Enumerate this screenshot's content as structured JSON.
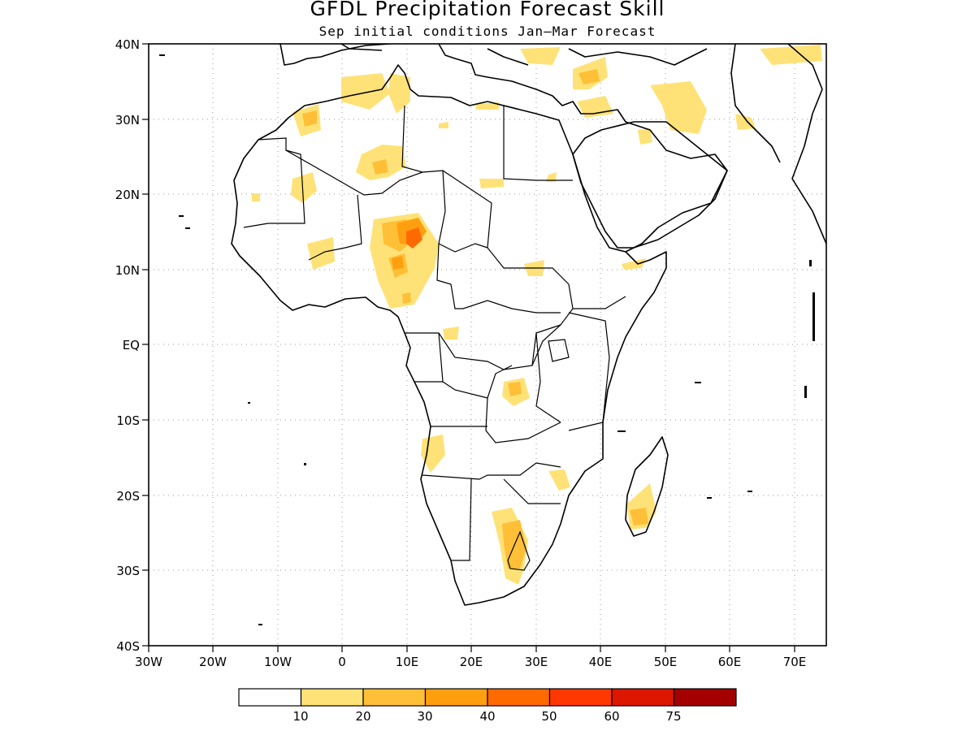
{
  "title": "GFDL Precipitation Forecast Skill",
  "subtitle": "Sep initial conditions  Jan–Mar Forecast",
  "map": {
    "region": "Africa",
    "lon_range": [
      -30,
      75
    ],
    "lat_range": [
      -40,
      40
    ],
    "lat_ticks": [
      "40N",
      "30N",
      "20N",
      "10N",
      "EQ",
      "10S",
      "20S",
      "30S",
      "40S"
    ],
    "lon_ticks": [
      "30W",
      "20W",
      "10W",
      "0",
      "10E",
      "20E",
      "30E",
      "40E",
      "50E",
      "60E",
      "70E"
    ],
    "grid": "dotted"
  },
  "colorbar": {
    "labels": [
      "10",
      "20",
      "30",
      "40",
      "50",
      "60",
      "75"
    ],
    "colors": [
      "#ffffff",
      "#ffe277",
      "#ffbf37",
      "#ff9f10",
      "#ff6a00",
      "#ff3700",
      "#dd1600",
      "#a50000"
    ]
  },
  "chart_data": {
    "type": "heatmap",
    "title": "GFDL Precipitation Forecast Skill",
    "subtitle": "Sep initial conditions  Jan–Mar Forecast",
    "xlim": [
      -30,
      75
    ],
    "ylim": [
      -40,
      40
    ],
    "levels": [
      10,
      20,
      30,
      40,
      50,
      60,
      75
    ],
    "skill_patches": [
      {
        "lon": 8,
        "lat": 19,
        "level": "10-20"
      },
      {
        "lon": 11,
        "lat": 13.5,
        "level": "40-50"
      },
      {
        "lon": 9,
        "lat": 10.5,
        "level": "30-40"
      },
      {
        "lon": -5,
        "lat": 29.5,
        "level": "20-30"
      },
      {
        "lon": 26,
        "lat": -24,
        "level": "20-30"
      },
      {
        "lon": 26.5,
        "lat": -27.5,
        "level": "20-30"
      },
      {
        "lon": 28,
        "lat": -5.5,
        "level": "10-20"
      },
      {
        "lon": 14,
        "lat": -14,
        "level": "10-20"
      },
      {
        "lon": 46,
        "lat": -22,
        "level": "10-20"
      },
      {
        "lon": 34,
        "lat": 34,
        "level": "10-20"
      },
      {
        "lon": 48,
        "lat": 32,
        "level": "10-20"
      }
    ]
  }
}
